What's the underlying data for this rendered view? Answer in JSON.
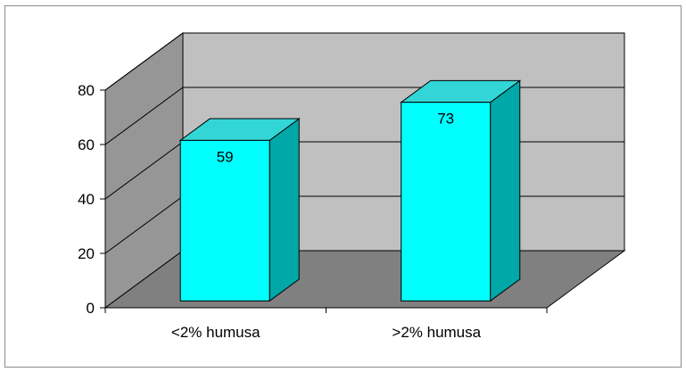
{
  "chart_data": {
    "type": "bar",
    "categories": [
      "<2% humusa",
      ">2% humusa"
    ],
    "values": [
      59,
      73
    ],
    "title": "",
    "xlabel": "",
    "ylabel": "",
    "ylim": [
      0,
      80
    ],
    "yticks": [
      0,
      20,
      40,
      60,
      80
    ],
    "grid": true,
    "data_labels": true,
    "three_d": true,
    "colors": {
      "bar_front": "#00FFFF",
      "bar_top": "#33D6D6",
      "bar_side": "#00A8A8",
      "back_wall": "#C0C0C0",
      "side_wall": "#969696",
      "floor": "#808080",
      "gridline": "#000000"
    }
  }
}
